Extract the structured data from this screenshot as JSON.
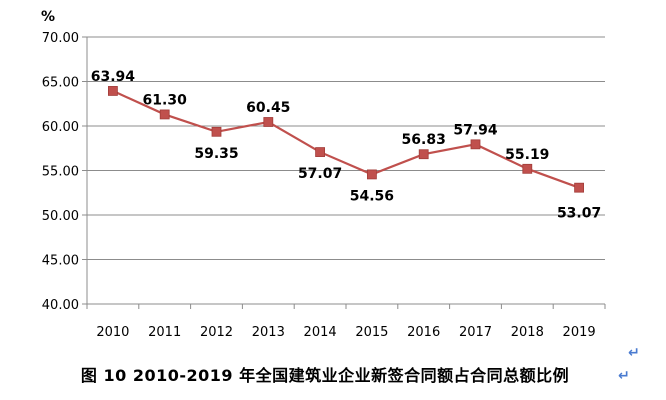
{
  "chart_data": {
    "type": "line",
    "title": "",
    "unit_label": "%",
    "x": [
      "2010",
      "2011",
      "2012",
      "2013",
      "2014",
      "2015",
      "2016",
      "2017",
      "2018",
      "2019"
    ],
    "y_ticks": [
      "40.00",
      "45.00",
      "50.00",
      "55.00",
      "60.00",
      "65.00",
      "70.00"
    ],
    "series": [
      {
        "values": [
          63.94,
          61.3,
          59.35,
          60.45,
          57.07,
          54.56,
          56.83,
          57.94,
          55.19,
          53.07
        ],
        "labels": [
          "63.94",
          "61.30",
          "59.35",
          "60.45",
          "57.07",
          "54.56",
          "56.83",
          "57.94",
          "55.19",
          "53.07"
        ]
      }
    ],
    "ylim": [
      40,
      70
    ],
    "y_step": 5,
    "grid": true,
    "line_color": "#c0504d"
  },
  "caption": "图 10  2010-2019 年全国建筑业企业新签合同额占合同总额比例",
  "return_symbol": "↵"
}
